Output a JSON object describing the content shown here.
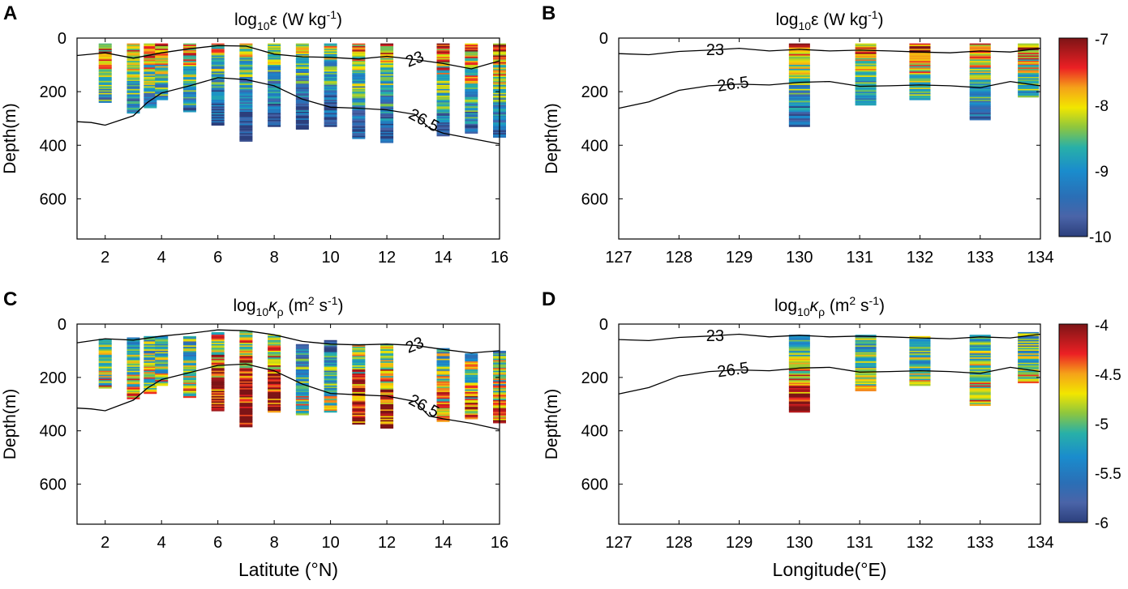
{
  "chart_data": [
    {
      "panel": "A",
      "type": "heatmap",
      "title": {
        "base": "log",
        "sub": "10",
        "main": "ε (W kg",
        "sup": "-1",
        "tail": ")"
      },
      "xlabel": "",
      "ylabel": "Depth(m)",
      "xlim": [
        1,
        16
      ],
      "ylim": [
        0,
        750
      ],
      "xticks": [
        "2",
        "4",
        "6",
        "8",
        "10",
        "12",
        "14",
        "16"
      ],
      "yticks": [
        "0",
        "200",
        "400",
        "600"
      ],
      "profiles_x": [
        2,
        3,
        3.6,
        4,
        5,
        6,
        7,
        8,
        9,
        10,
        11,
        12,
        14,
        15,
        16
      ],
      "profiles_top": [
        20,
        20,
        20,
        20,
        20,
        20,
        20,
        20,
        20,
        20,
        20,
        20,
        20,
        20,
        20
      ],
      "profiles_bottom": [
        240,
        280,
        260,
        230,
        275,
        325,
        385,
        330,
        340,
        330,
        375,
        390,
        365,
        355,
        370
      ],
      "surface_mode": "eps-lat",
      "isopycnals": [
        {
          "label": "23",
          "x": [
            1,
            2,
            3,
            4,
            5,
            6,
            7,
            8,
            9,
            10,
            11,
            12,
            13,
            14,
            15,
            16
          ],
          "depth": [
            65,
            55,
            75,
            55,
            40,
            28,
            30,
            60,
            70,
            72,
            78,
            68,
            80,
            95,
            115,
            85
          ]
        },
        {
          "label": "26.5",
          "x": [
            1,
            1.5,
            2,
            3,
            3.5,
            4,
            5,
            6,
            7,
            8,
            9,
            10,
            11,
            12,
            13,
            13.5,
            14,
            15,
            16
          ],
          "depth": [
            312,
            315,
            325,
            290,
            240,
            205,
            178,
            148,
            155,
            178,
            228,
            258,
            262,
            268,
            285,
            335,
            355,
            375,
            395
          ]
        }
      ],
      "contour_labels": [
        "23",
        "26.5"
      ]
    },
    {
      "panel": "B",
      "type": "heatmap",
      "title": {
        "base": "log",
        "sub": "10",
        "main": "ε (W kg",
        "sup": "-1",
        "tail": ")"
      },
      "xlabel": "",
      "ylabel": "Depth(m)",
      "xlim": [
        127,
        134
      ],
      "ylim": [
        0,
        750
      ],
      "xticks": [
        "127",
        "128",
        "129",
        "130",
        "131",
        "132",
        "133",
        "134"
      ],
      "yticks": [
        "0",
        "200",
        "400",
        "600"
      ],
      "profiles_x": [
        130,
        131.1,
        132,
        133,
        133.8
      ],
      "profiles_top": [
        20,
        20,
        20,
        20,
        20
      ],
      "profiles_bottom": [
        330,
        250,
        230,
        305,
        220
      ],
      "surface_mode": "eps-lon",
      "isopycnals": [
        {
          "label": "23",
          "x": [
            127,
            127.5,
            128,
            128.5,
            129,
            129.5,
            130,
            130.5,
            131,
            131.5,
            132,
            132.5,
            133,
            133.5,
            134
          ],
          "depth": [
            58,
            62,
            50,
            45,
            38,
            48,
            42,
            48,
            45,
            48,
            52,
            55,
            48,
            52,
            38
          ]
        },
        {
          "label": "26.5",
          "x": [
            127,
            127.5,
            128,
            128.5,
            129,
            129.5,
            130,
            130.5,
            131,
            131.5,
            132,
            132.5,
            133,
            133.5,
            134
          ],
          "depth": [
            262,
            238,
            195,
            178,
            172,
            175,
            165,
            162,
            180,
            178,
            175,
            178,
            185,
            162,
            178
          ]
        }
      ],
      "contour_labels": [
        "23",
        "26.5"
      ]
    },
    {
      "panel": "C",
      "type": "heatmap",
      "title": {
        "base": "log",
        "sub": "10",
        "main": "κ",
        "subsub": "ρ",
        "rest": " (m",
        "sup": "2",
        "tail": " s",
        "sup2": "-1",
        "end": ")"
      },
      "xlabel": "Latitute (°N)",
      "ylabel": "Depth(m)",
      "xlim": [
        1,
        16
      ],
      "ylim": [
        0,
        750
      ],
      "xticks": [
        "2",
        "4",
        "6",
        "8",
        "10",
        "12",
        "14",
        "16"
      ],
      "yticks": [
        "0",
        "200",
        "400",
        "600"
      ],
      "profiles_x": [
        2,
        3,
        3.6,
        4,
        5,
        6,
        7,
        8,
        9,
        10,
        11,
        12,
        14,
        15,
        16
      ],
      "profiles_top": [
        55,
        50,
        45,
        45,
        45,
        30,
        25,
        40,
        75,
        60,
        75,
        75,
        90,
        110,
        100
      ],
      "profiles_bottom": [
        240,
        280,
        260,
        230,
        275,
        325,
        385,
        330,
        340,
        330,
        375,
        390,
        365,
        355,
        370
      ],
      "surface_mode": "kappa-lat",
      "isopycnals": [
        {
          "label": "23",
          "x": [
            1,
            2,
            3,
            4,
            5,
            6,
            7,
            8,
            9,
            10,
            11,
            12,
            13,
            14,
            15,
            16
          ],
          "depth": [
            70,
            55,
            60,
            45,
            35,
            22,
            25,
            40,
            65,
            75,
            78,
            75,
            80,
            95,
            108,
            100
          ]
        },
        {
          "label": "26.5",
          "x": [
            1,
            1.5,
            2,
            3,
            3.5,
            4,
            5,
            6,
            7,
            8,
            9,
            10,
            11,
            12,
            13,
            13.5,
            14,
            15,
            16
          ],
          "depth": [
            315,
            318,
            325,
            285,
            240,
            208,
            182,
            155,
            150,
            175,
            225,
            260,
            265,
            270,
            290,
            345,
            355,
            372,
            395
          ]
        }
      ],
      "contour_labels": [
        "23",
        "26.5"
      ]
    },
    {
      "panel": "D",
      "type": "heatmap",
      "title": {
        "base": "log",
        "sub": "10",
        "main": "κ",
        "subsub": "ρ",
        "rest": " (m",
        "sup": "2",
        "tail": " s",
        "sup2": "-1",
        "end": ")"
      },
      "xlabel": "Longitude(°E)",
      "ylabel": "Depth(m)",
      "xlim": [
        127,
        134
      ],
      "ylim": [
        0,
        750
      ],
      "xticks": [
        "127",
        "128",
        "129",
        "130",
        "131",
        "132",
        "133",
        "134"
      ],
      "yticks": [
        "0",
        "200",
        "400",
        "600"
      ],
      "profiles_x": [
        130,
        131.1,
        132,
        133,
        133.8
      ],
      "profiles_top": [
        40,
        40,
        45,
        40,
        30
      ],
      "profiles_bottom": [
        330,
        250,
        230,
        305,
        220
      ],
      "surface_mode": "kappa-lon",
      "isopycnals": [
        {
          "label": "23",
          "x": [
            127,
            127.5,
            128,
            128.5,
            129,
            129.5,
            130,
            130.5,
            131,
            131.5,
            132,
            132.5,
            133,
            133.5,
            134
          ],
          "depth": [
            58,
            62,
            50,
            45,
            38,
            48,
            42,
            48,
            45,
            48,
            52,
            55,
            48,
            52,
            38
          ]
        },
        {
          "label": "26.5",
          "x": [
            127,
            127.5,
            128,
            128.5,
            129,
            129.5,
            130,
            130.5,
            131,
            131.5,
            132,
            132.5,
            133,
            133.5,
            134
          ],
          "depth": [
            262,
            238,
            195,
            178,
            172,
            175,
            165,
            162,
            180,
            178,
            175,
            178,
            185,
            162,
            178
          ]
        }
      ],
      "contour_labels": [
        "23",
        "26.5"
      ]
    }
  ],
  "panel_letters": [
    "A",
    "B",
    "C",
    "D"
  ],
  "colorbars": [
    {
      "id": "eps",
      "range": [
        -10,
        -7
      ],
      "ticks": [
        "-7",
        "-8",
        "-9",
        "-10"
      ]
    },
    {
      "id": "kappa",
      "range": [
        -6,
        -4
      ],
      "ticks": [
        "-4",
        "-4.5",
        "-5",
        "-5.5",
        "-6"
      ]
    }
  ]
}
